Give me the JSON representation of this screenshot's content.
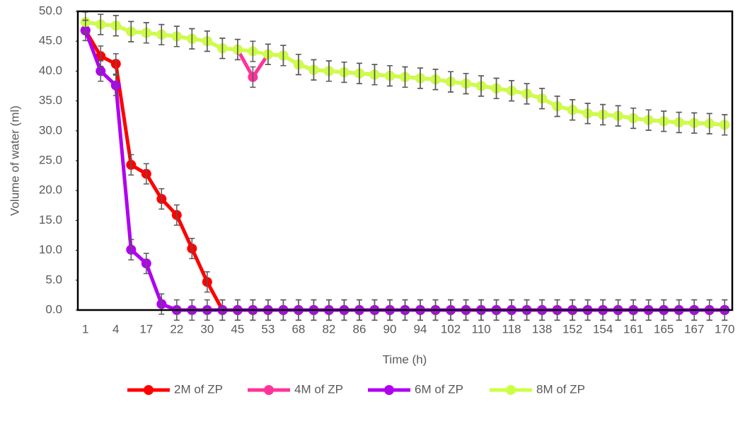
{
  "chart_data": {
    "type": "line",
    "x_label": "Time (h)",
    "y_label": "Volume of water (ml)",
    "categories": [
      "1",
      null,
      "4",
      null,
      "17",
      null,
      "22",
      null,
      "30",
      null,
      "45",
      null,
      "53",
      null,
      "68",
      null,
      "82",
      null,
      "86",
      null,
      "90",
      null,
      "94",
      null,
      "102",
      null,
      "110",
      null,
      "118",
      null,
      "138",
      null,
      "152",
      null,
      "154",
      null,
      "161",
      null,
      "165",
      null,
      "167",
      null,
      "170"
    ],
    "ylim": [
      0,
      50
    ],
    "yticks": [
      {
        "value": 0,
        "label": "0.0"
      },
      {
        "value": 5,
        "label": "5.0"
      },
      {
        "value": 10,
        "label": "10.0"
      },
      {
        "value": 15,
        "label": "15.0"
      },
      {
        "value": 20,
        "label": "20.0"
      },
      {
        "value": 25,
        "label": "25.0"
      },
      {
        "value": 30,
        "label": "30.0"
      },
      {
        "value": 35,
        "label": "35.0"
      },
      {
        "value": 40,
        "label": "40.0"
      },
      {
        "value": 45,
        "label": "45.0"
      },
      {
        "value": 50,
        "label": "50.0"
      }
    ],
    "error_bar": 1.7,
    "error_color": "#595959",
    "legend": "bottom",
    "series": [
      {
        "name": "2M of ZP",
        "color": "#ff0000",
        "values": [
          46.8,
          42.5,
          41.2,
          24.3,
          22.8,
          18.6,
          15.9,
          10.3,
          4.7,
          0,
          0,
          0,
          0,
          0,
          0,
          0,
          0,
          0,
          0,
          0,
          0,
          0,
          0,
          0,
          0,
          0,
          0,
          0,
          0,
          0,
          0,
          0,
          0,
          0,
          0,
          0,
          0,
          0,
          0,
          0,
          0,
          0,
          0
        ]
      },
      {
        "name": "4M of ZP",
        "color": "#ff3399",
        "values": [
          48.2,
          47.8,
          47.6,
          46.6,
          46.4,
          46.1,
          45.8,
          45.4,
          45.0,
          43.8,
          43.6,
          39.0,
          42.8,
          42.6,
          41.1,
          40.2,
          40.0,
          39.8,
          39.6,
          39.4,
          39.2,
          39.0,
          38.8,
          38.6,
          38.2,
          37.9,
          37.5,
          37.1,
          36.7,
          36.2,
          35.4,
          34.1,
          33.5,
          32.9,
          32.7,
          32.5,
          32.1,
          31.8,
          31.6,
          31.4,
          31.3,
          31.2,
          31.0
        ]
      },
      {
        "name": "6M of ZP",
        "color": "#b000f0",
        "values": [
          46.8,
          40.0,
          37.6,
          10.1,
          7.8,
          1.0,
          0,
          0,
          0,
          0,
          0,
          0,
          0,
          0,
          0,
          0,
          0,
          0,
          0,
          0,
          0,
          0,
          0,
          0,
          0,
          0,
          0,
          0,
          0,
          0,
          0,
          0,
          0,
          0,
          0,
          0,
          0,
          0,
          0,
          0,
          0,
          0,
          0
        ]
      },
      {
        "name": "8M of ZP",
        "color": "#ccff44",
        "values": [
          48.2,
          47.8,
          47.6,
          46.6,
          46.4,
          46.1,
          45.8,
          45.4,
          45.0,
          43.8,
          43.6,
          43.3,
          42.8,
          42.6,
          41.1,
          40.2,
          40.0,
          39.8,
          39.6,
          39.4,
          39.2,
          39.0,
          38.8,
          38.6,
          38.2,
          37.9,
          37.5,
          37.1,
          36.7,
          36.2,
          35.4,
          34.1,
          33.5,
          32.9,
          32.7,
          32.5,
          32.1,
          31.8,
          31.6,
          31.4,
          31.3,
          31.2,
          31.0
        ]
      }
    ]
  }
}
